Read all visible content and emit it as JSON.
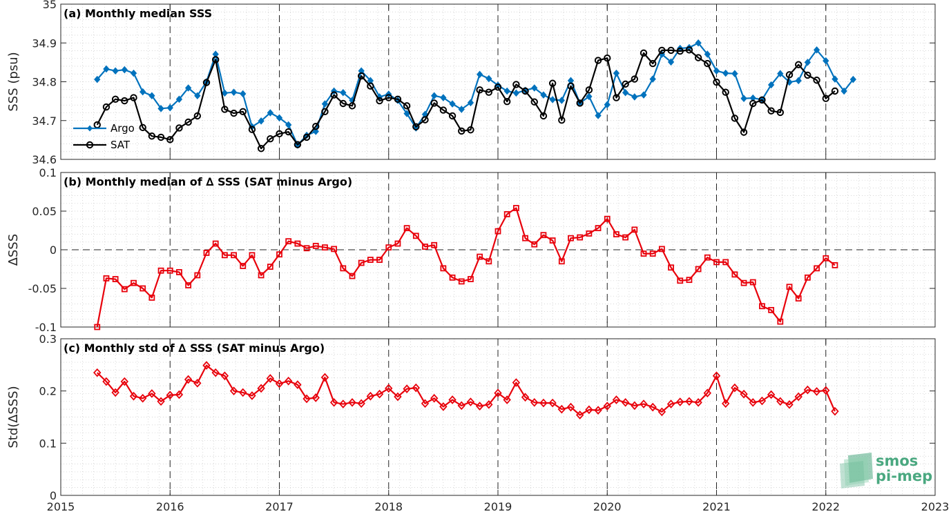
{
  "chart_data": [
    {
      "type": "line",
      "title": "(a) Monthly median SSS",
      "ylabel": "SSS (psu)",
      "xlim": [
        2015,
        2023
      ],
      "ylim": [
        34.6,
        35
      ],
      "x_ticks": [
        "2015",
        "2016",
        "2017",
        "2018",
        "2019",
        "2020",
        "2021",
        "2022",
        "2023"
      ],
      "y_ticks": [
        "34.6",
        "34.7",
        "34.8",
        "34.9",
        "35"
      ],
      "grid": "minor dotted",
      "legend_position": "bottom-left",
      "start": "2015-05",
      "series": [
        {
          "name": "Argo",
          "color": "#0072BD",
          "marker": "diamond-filled",
          "values": [
            34.806,
            34.833,
            34.828,
            34.831,
            34.822,
            34.774,
            34.764,
            34.731,
            34.733,
            34.755,
            34.784,
            34.764,
            34.8,
            34.871,
            34.771,
            34.773,
            34.769,
            34.684,
            34.699,
            34.72,
            34.707,
            34.689,
            34.637,
            34.662,
            34.672,
            34.743,
            34.776,
            34.772,
            34.752,
            34.828,
            34.803,
            34.761,
            34.768,
            34.752,
            34.718,
            34.681,
            34.716,
            34.764,
            34.759,
            34.743,
            34.729,
            34.746,
            34.819,
            34.808,
            34.791,
            34.776,
            34.771,
            34.778,
            34.784,
            34.766,
            34.754,
            34.752,
            34.803,
            34.745,
            34.762,
            34.713,
            34.741,
            34.822,
            34.772,
            34.761,
            34.766,
            34.807,
            34.871,
            34.851,
            34.886,
            34.888,
            34.9,
            34.871,
            34.828,
            34.822,
            34.821,
            34.757,
            34.758,
            34.754,
            34.792,
            34.821,
            34.799,
            34.803,
            34.85,
            34.882,
            34.854,
            34.807,
            34.776,
            34.806
          ]
        },
        {
          "name": "SAT",
          "color": "#000000",
          "marker": "circle-open",
          "values": [
            34.689,
            34.735,
            34.755,
            34.751,
            34.759,
            34.682,
            34.66,
            34.657,
            34.651,
            34.681,
            34.696,
            34.712,
            34.798,
            34.857,
            34.729,
            34.719,
            34.723,
            34.677,
            34.628,
            34.653,
            34.666,
            34.671,
            34.638,
            34.657,
            34.685,
            34.723,
            34.766,
            34.744,
            34.738,
            34.815,
            34.789,
            34.751,
            34.759,
            34.755,
            34.738,
            34.684,
            34.702,
            34.745,
            34.727,
            34.712,
            34.673,
            34.676,
            34.779,
            34.773,
            34.786,
            34.749,
            34.793,
            34.776,
            34.748,
            34.712,
            34.796,
            34.701,
            34.789,
            34.745,
            34.779,
            34.855,
            34.861,
            34.759,
            34.794,
            34.807,
            34.874,
            34.847,
            34.881,
            34.881,
            34.879,
            34.882,
            34.862,
            34.847,
            34.799,
            34.773,
            34.706,
            34.67,
            34.744,
            34.753,
            34.725,
            34.721,
            34.818,
            34.844,
            34.817,
            34.804,
            34.757,
            34.776
          ]
        }
      ]
    },
    {
      "type": "line",
      "title": "(b) Monthly median of ∆ SSS (SAT minus Argo)",
      "ylabel": "∆SSS",
      "xlim": [
        2015,
        2023
      ],
      "ylim": [
        -0.1,
        0.1
      ],
      "x_ticks": [
        "2015",
        "2016",
        "2017",
        "2018",
        "2019",
        "2020",
        "2021",
        "2022",
        "2023"
      ],
      "y_ticks": [
        "-0.1",
        "-0.05",
        "0",
        "0.05",
        "0.1"
      ],
      "grid": "minor dotted",
      "start": "2015-05",
      "series": [
        {
          "color": "#E8000B",
          "marker": "square-open",
          "values": [
            -0.1,
            -0.037,
            -0.038,
            -0.051,
            -0.043,
            -0.05,
            -0.062,
            -0.027,
            -0.027,
            -0.029,
            -0.046,
            -0.033,
            -0.004,
            0.008,
            -0.007,
            -0.007,
            -0.021,
            -0.007,
            -0.033,
            -0.022,
            -0.006,
            0.011,
            0.008,
            0.002,
            0.005,
            0.003,
            0.001,
            -0.024,
            -0.034,
            -0.017,
            -0.013,
            -0.013,
            0.003,
            0.008,
            0.028,
            0.018,
            0.004,
            0.006,
            -0.024,
            -0.036,
            -0.041,
            -0.038,
            -0.009,
            -0.015,
            0.024,
            0.046,
            0.054,
            0.015,
            0.007,
            0.019,
            0.012,
            -0.015,
            0.015,
            0.016,
            0.021,
            0.028,
            0.04,
            0.02,
            0.016,
            0.026,
            -0.005,
            -0.005,
            0.001,
            -0.023,
            -0.04,
            -0.039,
            -0.025,
            -0.01,
            -0.016,
            -0.016,
            -0.032,
            -0.043,
            -0.042,
            -0.073,
            -0.078,
            -0.093,
            -0.048,
            -0.063,
            -0.036,
            -0.024,
            -0.011,
            -0.02
          ]
        }
      ]
    },
    {
      "type": "line",
      "title": "(c) Monthly std of ∆ SSS (SAT minus Argo)",
      "ylabel": "Std(∆SSS)",
      "xlim": [
        2015,
        2023
      ],
      "ylim": [
        0,
        0.3
      ],
      "x_ticks": [
        "2015",
        "2016",
        "2017",
        "2018",
        "2019",
        "2020",
        "2021",
        "2022",
        "2023"
      ],
      "y_ticks": [
        "0",
        "0.1",
        "0.2",
        "0.3"
      ],
      "grid": "minor dotted",
      "start": "2015-05",
      "series": [
        {
          "color": "#E8000B",
          "marker": "diamond-open",
          "values": [
            0.235,
            0.218,
            0.197,
            0.218,
            0.19,
            0.186,
            0.195,
            0.18,
            0.192,
            0.193,
            0.222,
            0.215,
            0.249,
            0.235,
            0.229,
            0.2,
            0.197,
            0.191,
            0.205,
            0.224,
            0.214,
            0.219,
            0.212,
            0.185,
            0.187,
            0.226,
            0.178,
            0.175,
            0.178,
            0.176,
            0.19,
            0.194,
            0.205,
            0.189,
            0.204,
            0.206,
            0.176,
            0.186,
            0.17,
            0.183,
            0.172,
            0.179,
            0.171,
            0.174,
            0.196,
            0.183,
            0.216,
            0.188,
            0.178,
            0.177,
            0.177,
            0.165,
            0.169,
            0.154,
            0.164,
            0.163,
            0.171,
            0.183,
            0.178,
            0.172,
            0.175,
            0.169,
            0.16,
            0.175,
            0.179,
            0.18,
            0.178,
            0.196,
            0.229,
            0.176,
            0.206,
            0.194,
            0.178,
            0.181,
            0.193,
            0.18,
            0.174,
            0.189,
            0.202,
            0.199,
            0.201,
            0.161
          ]
        }
      ]
    }
  ],
  "logo": {
    "line1": "smos",
    "line2": "pi-mep",
    "color": "#4aa880"
  }
}
